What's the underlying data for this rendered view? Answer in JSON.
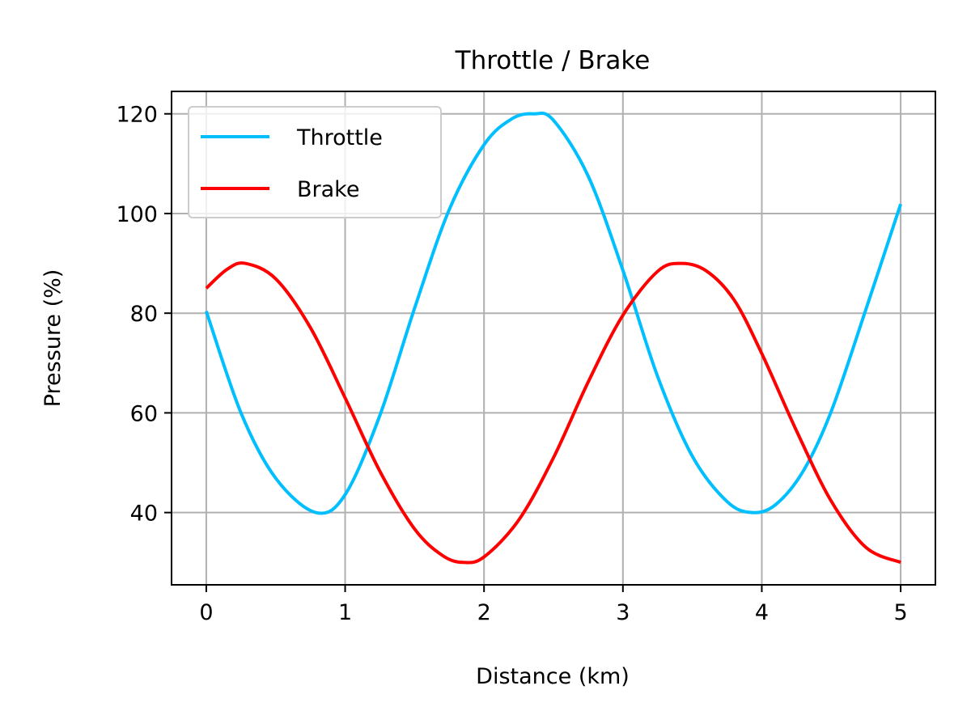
{
  "chart_data": {
    "type": "line",
    "title": "Throttle / Brake",
    "xlabel": "Distance (km)",
    "ylabel": "Pressure (%)",
    "xlim": [
      -0.25,
      5.25
    ],
    "ylim": [
      25.5,
      124.5
    ],
    "xticks": [
      0,
      1,
      2,
      3,
      4,
      5
    ],
    "yticks": [
      40,
      60,
      80,
      100,
      120
    ],
    "grid": true,
    "legend_position": "top-left",
    "series": [
      {
        "name": "Throttle",
        "color": "#00bfff",
        "x": [
          0,
          0.25,
          0.5,
          0.79,
          1.0,
          1.25,
          1.5,
          1.75,
          2.0,
          2.2,
          2.36,
          2.5,
          2.75,
          3.0,
          3.25,
          3.5,
          3.75,
          3.93,
          4.1,
          4.3,
          4.5,
          4.75,
          5.0
        ],
        "y": [
          80.4,
          60.0,
          46.9,
          40.0,
          43.6,
          59.5,
          81.0,
          100.8,
          113.8,
          119.0,
          120.0,
          118.7,
          107.5,
          88.6,
          67.3,
          51.3,
          42.2,
          40.0,
          41.6,
          48.4,
          60.3,
          80.8,
          101.9
        ]
      },
      {
        "name": "Brake",
        "color": "#ff0000",
        "x": [
          0,
          0.15,
          0.28,
          0.5,
          0.75,
          1.0,
          1.25,
          1.5,
          1.7,
          1.85,
          2.0,
          2.25,
          2.5,
          2.75,
          3.0,
          3.25,
          3.42,
          3.6,
          3.8,
          4.0,
          4.25,
          4.5,
          4.75,
          5.0
        ],
        "y": [
          85.0,
          88.8,
          90.0,
          86.9,
          77.1,
          63.0,
          48.3,
          36.7,
          31.4,
          30.0,
          31.1,
          38.5,
          51.0,
          66.2,
          79.6,
          88.4,
          90.0,
          88.5,
          82.7,
          71.9,
          56.4,
          42.3,
          33.0,
          30.0
        ]
      }
    ]
  }
}
